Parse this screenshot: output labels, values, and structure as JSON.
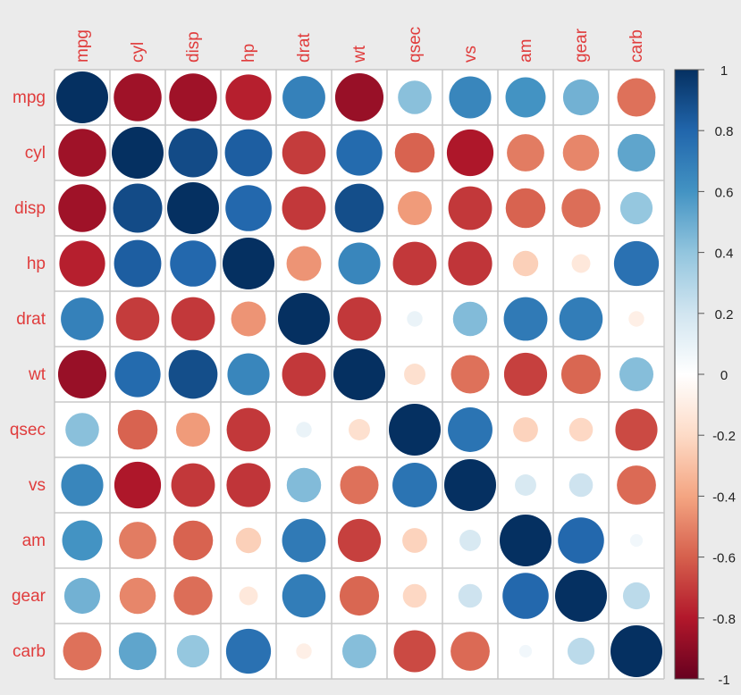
{
  "chart_data": {
    "type": "heatmap",
    "variables": [
      "mpg",
      "cyl",
      "disp",
      "hp",
      "drat",
      "wt",
      "qsec",
      "vs",
      "am",
      "gear",
      "carb"
    ],
    "matrix": [
      [
        1.0,
        -0.85,
        -0.85,
        -0.78,
        0.68,
        -0.87,
        0.42,
        0.66,
        0.6,
        0.48,
        -0.55
      ],
      [
        -0.85,
        1.0,
        0.9,
        0.83,
        -0.7,
        0.78,
        -0.59,
        -0.81,
        -0.52,
        -0.49,
        0.53
      ],
      [
        -0.85,
        0.9,
        1.0,
        0.79,
        -0.71,
        0.89,
        -0.43,
        -0.71,
        -0.59,
        -0.56,
        0.39
      ],
      [
        -0.78,
        0.83,
        0.79,
        1.0,
        -0.45,
        0.66,
        -0.71,
        -0.72,
        -0.24,
        -0.13,
        0.75
      ],
      [
        0.68,
        -0.7,
        -0.71,
        -0.45,
        1.0,
        -0.71,
        0.09,
        0.44,
        0.71,
        0.7,
        -0.09
      ],
      [
        -0.87,
        0.78,
        0.89,
        0.66,
        -0.71,
        1.0,
        -0.17,
        -0.55,
        -0.69,
        -0.58,
        0.43
      ],
      [
        0.42,
        -0.59,
        -0.43,
        -0.71,
        0.09,
        -0.17,
        1.0,
        0.74,
        -0.23,
        -0.21,
        -0.66
      ],
      [
        0.66,
        -0.81,
        -0.71,
        -0.72,
        0.44,
        -0.55,
        0.74,
        1.0,
        0.17,
        0.21,
        -0.57
      ],
      [
        0.6,
        -0.52,
        -0.59,
        -0.24,
        0.71,
        -0.69,
        -0.23,
        0.17,
        1.0,
        0.79,
        0.06
      ],
      [
        0.48,
        -0.49,
        -0.56,
        -0.13,
        0.7,
        -0.58,
        -0.21,
        0.21,
        0.79,
        1.0,
        0.27
      ],
      [
        -0.55,
        0.53,
        0.39,
        0.75,
        -0.09,
        0.43,
        -0.66,
        -0.57,
        0.06,
        0.27,
        1.0
      ]
    ],
    "colorbar_ticks": [
      "1",
      "0.8",
      "0.6",
      "0.4",
      "0.2",
      "0",
      "-0.2",
      "-0.4",
      "-0.6",
      "-0.8",
      "-1"
    ],
    "range": [
      -1,
      1
    ],
    "label_color": "#e03c3c",
    "grid_color": "#c8c8c8"
  }
}
